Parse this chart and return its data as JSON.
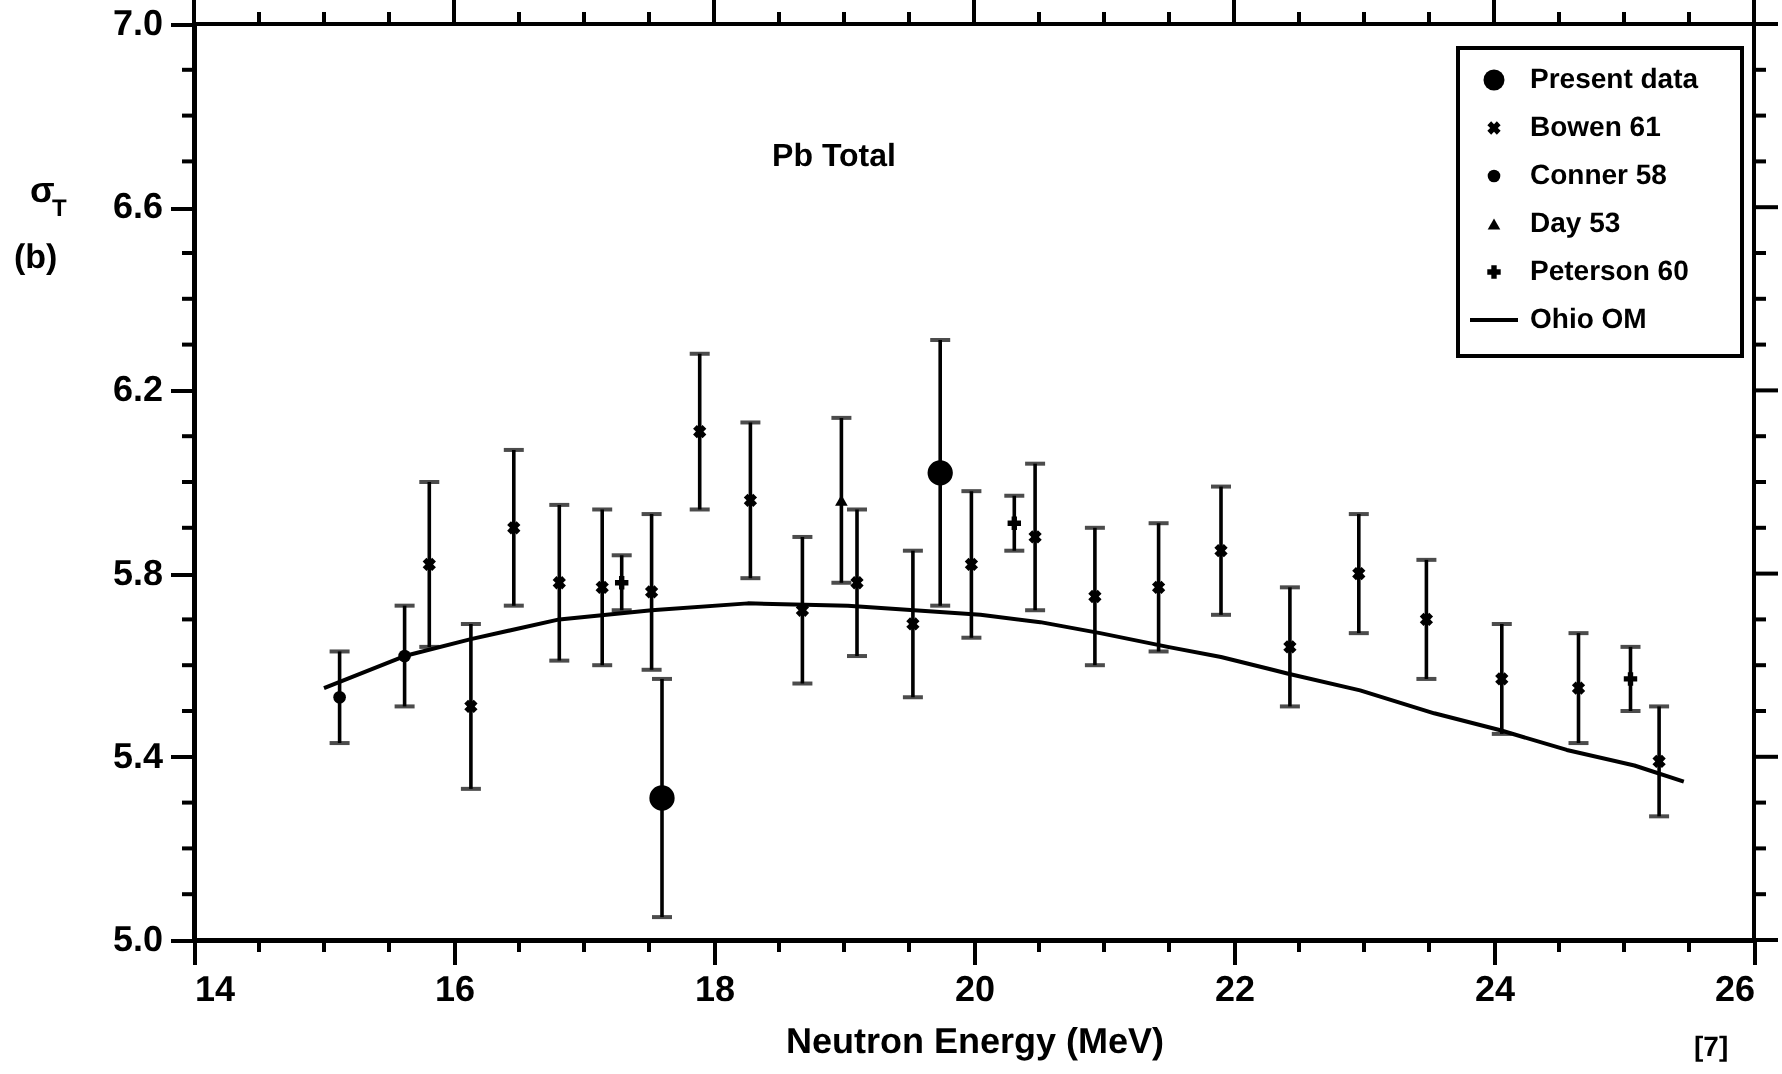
{
  "chart_data": {
    "type": "scatter",
    "title": "Pb  Total",
    "xlabel": "Neutron Energy (MeV)",
    "ylabel": "σ$_{T}$ (b)",
    "xlim": [
      14,
      26
    ],
    "ylim": [
      5,
      7
    ],
    "xticks": [
      14,
      {
        "value": 14.5,
        "label": null
      },
      {
        "value": 15,
        "label": null
      },
      {
        "value": 15.5,
        "label": null
      },
      16,
      {
        "value": 16.5,
        "label": null
      },
      {
        "value": 17,
        "label": null
      },
      {
        "value": 17.5,
        "label": null
      },
      18,
      {
        "value": 18.5,
        "label": null
      },
      {
        "value": 19,
        "label": null
      },
      {
        "value": 19.5,
        "label": null
      },
      20,
      {
        "value": 20.5,
        "label": null
      },
      {
        "value": 21,
        "label": null
      },
      {
        "value": 21.5,
        "label": null
      },
      22,
      {
        "value": 22.5,
        "label": null
      },
      {
        "value": 23,
        "label": null
      },
      {
        "value": 23.5,
        "label": null
      },
      24,
      {
        "value": 24.5,
        "label": null
      },
      {
        "value": 25,
        "label": null
      },
      {
        "value": 25.5,
        "label": null
      },
      26
    ],
    "yticks": [
      {
        "value": 5,
        "label": "5.0"
      },
      {
        "value": 5.1,
        "label": null
      },
      {
        "value": 5.2,
        "label": null
      },
      {
        "value": 5.3,
        "label": null
      },
      5.4,
      {
        "value": 5.5,
        "label": null
      },
      {
        "value": 5.6,
        "label": null
      },
      {
        "value": 5.7,
        "label": null
      },
      5.8,
      {
        "value": 5.9,
        "label": null
      },
      {
        "value": 6.0,
        "label": null
      },
      {
        "value": 6.1,
        "label": null
      },
      6.2,
      {
        "value": 6.3,
        "label": null
      },
      {
        "value": 6.4,
        "label": null
      },
      {
        "value": 6.5,
        "label": null
      },
      6.6,
      {
        "value": 6.7,
        "label": null
      },
      {
        "value": 6.8,
        "label": null
      },
      {
        "value": 6.9,
        "label": null
      },
      {
        "value": 7,
        "label": "7.0"
      }
    ],
    "grid": false,
    "legend": "top right",
    "annotations": [
      "[7]"
    ],
    "series": [
      {
        "name": "Present data",
        "marker": "circle",
        "color": "#000000",
        "x": [
          17.6,
          19.74
        ],
        "values": [
          5.31,
          6.02
        ],
        "errors": [
          0.26,
          0.29
        ]
      },
      {
        "name": "Bowen 61",
        "marker": "cross",
        "color": "#000000",
        "x": [
          15.81,
          16.13,
          16.46,
          16.81,
          17.14,
          17.52,
          17.89,
          18.28,
          18.68,
          19.1,
          19.53,
          19.98,
          20.47,
          20.93,
          21.42,
          21.9,
          22.43,
          22.96,
          23.48,
          24.06,
          24.65,
          25.27
        ],
        "values": [
          5.82,
          5.51,
          5.9,
          5.78,
          5.77,
          5.76,
          6.11,
          5.96,
          5.72,
          5.78,
          5.69,
          5.82,
          5.88,
          5.75,
          5.77,
          5.85,
          5.64,
          5.8,
          5.7,
          5.57,
          5.55,
          5.39
        ],
        "errors": [
          0.18,
          0.18,
          0.17,
          0.17,
          0.17,
          0.17,
          0.17,
          0.17,
          0.16,
          0.16,
          0.16,
          0.16,
          0.16,
          0.15,
          0.14,
          0.14,
          0.13,
          0.13,
          0.13,
          0.12,
          0.12,
          0.12
        ]
      },
      {
        "name": "Conner 58",
        "marker": "circle",
        "color": "#000000",
        "x": [
          15.12,
          15.62
        ],
        "values": [
          5.53,
          5.62
        ],
        "errors": [
          0.1,
          0.11
        ]
      },
      {
        "name": "Day 53",
        "marker": "triangle",
        "color": "#000000",
        "x": [
          18.98
        ],
        "values": [
          5.96
        ],
        "errors": [
          0.18
        ]
      },
      {
        "name": "Peterson 60",
        "marker": "plus",
        "color": "#000000",
        "x": [
          17.29,
          20.31,
          25.05
        ],
        "values": [
          5.78,
          5.91,
          5.57
        ],
        "errors": [
          0.06,
          0.06,
          0.07
        ]
      },
      {
        "name": "Ohio OM",
        "type": "line",
        "line_style": "solid",
        "color": "#000000",
        "x": [
          15.0,
          15.62,
          16.13,
          16.81,
          17.52,
          18.26,
          19.03,
          19.54,
          20.05,
          20.51,
          20.97,
          21.49,
          21.9,
          22.41,
          22.97,
          23.54,
          24.05,
          24.56,
          25.08,
          25.46
        ],
        "values": [
          5.55,
          5.62,
          5.657,
          5.7,
          5.72,
          5.735,
          5.73,
          5.72,
          5.71,
          5.694,
          5.67,
          5.64,
          5.618,
          5.582,
          5.545,
          5.495,
          5.458,
          5.415,
          5.381,
          5.346
        ]
      }
    ]
  }
}
